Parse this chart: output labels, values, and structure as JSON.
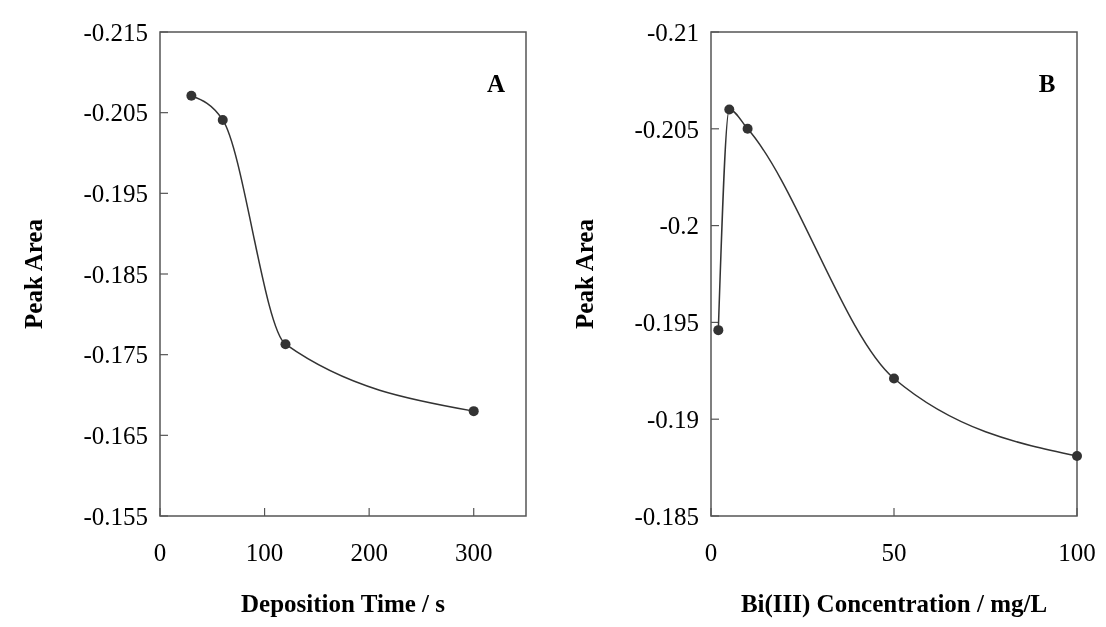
{
  "chart_data": [
    {
      "type": "line",
      "xlabel": "Deposition Time / s",
      "ylabel": "Peak Area",
      "annotations": [
        "A"
      ],
      "x": [
        30,
        60,
        120,
        300
      ],
      "series": [
        {
          "color": "#333333",
          "values": [
            -0.2071,
            -0.2041,
            -0.1763,
            -0.168
          ]
        }
      ],
      "xlim": [
        0,
        350
      ],
      "xticks": [
        0,
        100,
        200,
        300
      ],
      "ylim": [
        -0.155,
        -0.215
      ],
      "yticks": [
        -0.215,
        -0.205,
        -0.195,
        -0.185,
        -0.175,
        -0.165,
        -0.155
      ],
      "marker": "circle",
      "grid": false
    },
    {
      "type": "line",
      "xlabel": "Bi(III) Concentration / mg/L",
      "ylabel": "Peak Area",
      "annotations": [
        "B"
      ],
      "x": [
        2,
        5,
        10,
        50,
        100
      ],
      "series": [
        {
          "color": "#333333",
          "values": [
            -0.1946,
            -0.206,
            -0.205,
            -0.1921,
            -0.1881
          ]
        }
      ],
      "xlim": [
        0,
        100
      ],
      "xticks": [
        0,
        50,
        100
      ],
      "ylim": [
        -0.185,
        -0.21
      ],
      "yticks": [
        -0.21,
        -0.205,
        -0.2,
        -0.195,
        -0.19,
        -0.185
      ],
      "marker": "circle",
      "grid": false
    }
  ]
}
